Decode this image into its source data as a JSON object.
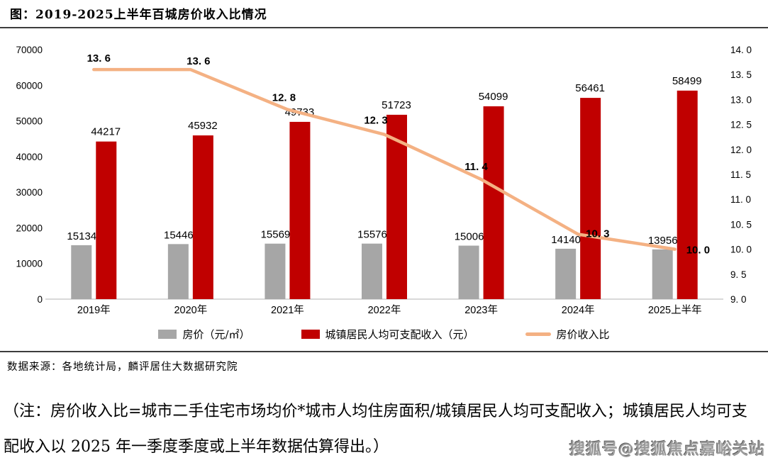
{
  "page": {
    "title": "图：2019-2025上半年百城房价收入比情况",
    "source": "数据来源：各地统计局，麟评居住大数据研究院",
    "note": "（注：房价收入比=城市二手住宅市场均价*城市人均住房面积/城镇居民人均可支配收入；城镇居民人均可支配收入以 2025 年一季度季度或上半年数据估算得出。）",
    "watermark": "搜狐号@搜狐焦点嘉峪关站"
  },
  "chart_data": {
    "type": "bar",
    "subtype": "grouped-bars-with-line",
    "title": "2019-2025上半年百城房价收入比情况",
    "categories": [
      "2019年",
      "2020年",
      "2021年",
      "2022年",
      "2023年",
      "2024年",
      "2025上半年"
    ],
    "series": [
      {
        "name": "房价（元/㎡）",
        "type": "bar",
        "axis": "left",
        "color": "#A6A6A6",
        "values": [
          15134,
          15446,
          15569,
          15576,
          15006,
          14140,
          13956
        ]
      },
      {
        "name": "城镇居民人均可支配收入（元）",
        "type": "bar",
        "axis": "left",
        "color": "#C00000",
        "values": [
          44217,
          45932,
          49733,
          51723,
          54099,
          56461,
          58499
        ]
      },
      {
        "name": "房价收入比",
        "type": "line",
        "axis": "right",
        "color": "#F4B183",
        "values": [
          13.6,
          13.6,
          12.8,
          12.3,
          11.4,
          10.3,
          10.0
        ],
        "point_labels": [
          "13. 6",
          "13. 6",
          "12. 8",
          "12. 3",
          "11. 4",
          "10. 3",
          "10. 0"
        ]
      }
    ],
    "left_axis": {
      "min": 0,
      "max": 70000,
      "step": 10000,
      "tick_labels": [
        "0",
        "10000",
        "20000",
        "30000",
        "40000",
        "50000",
        "60000",
        "70000"
      ]
    },
    "right_axis": {
      "min": 9,
      "max": 14,
      "step": 0.5,
      "tick_labels": [
        "9. 0",
        "9. 5",
        "10. 0",
        "10. 5",
        "11. 0",
        "11. 5",
        "12. 0",
        "12. 5",
        "13. 0",
        "13. 5",
        "14. 0"
      ]
    },
    "grid": false,
    "legend_position": "bottom",
    "baseline_color": "#D9D9D9"
  }
}
